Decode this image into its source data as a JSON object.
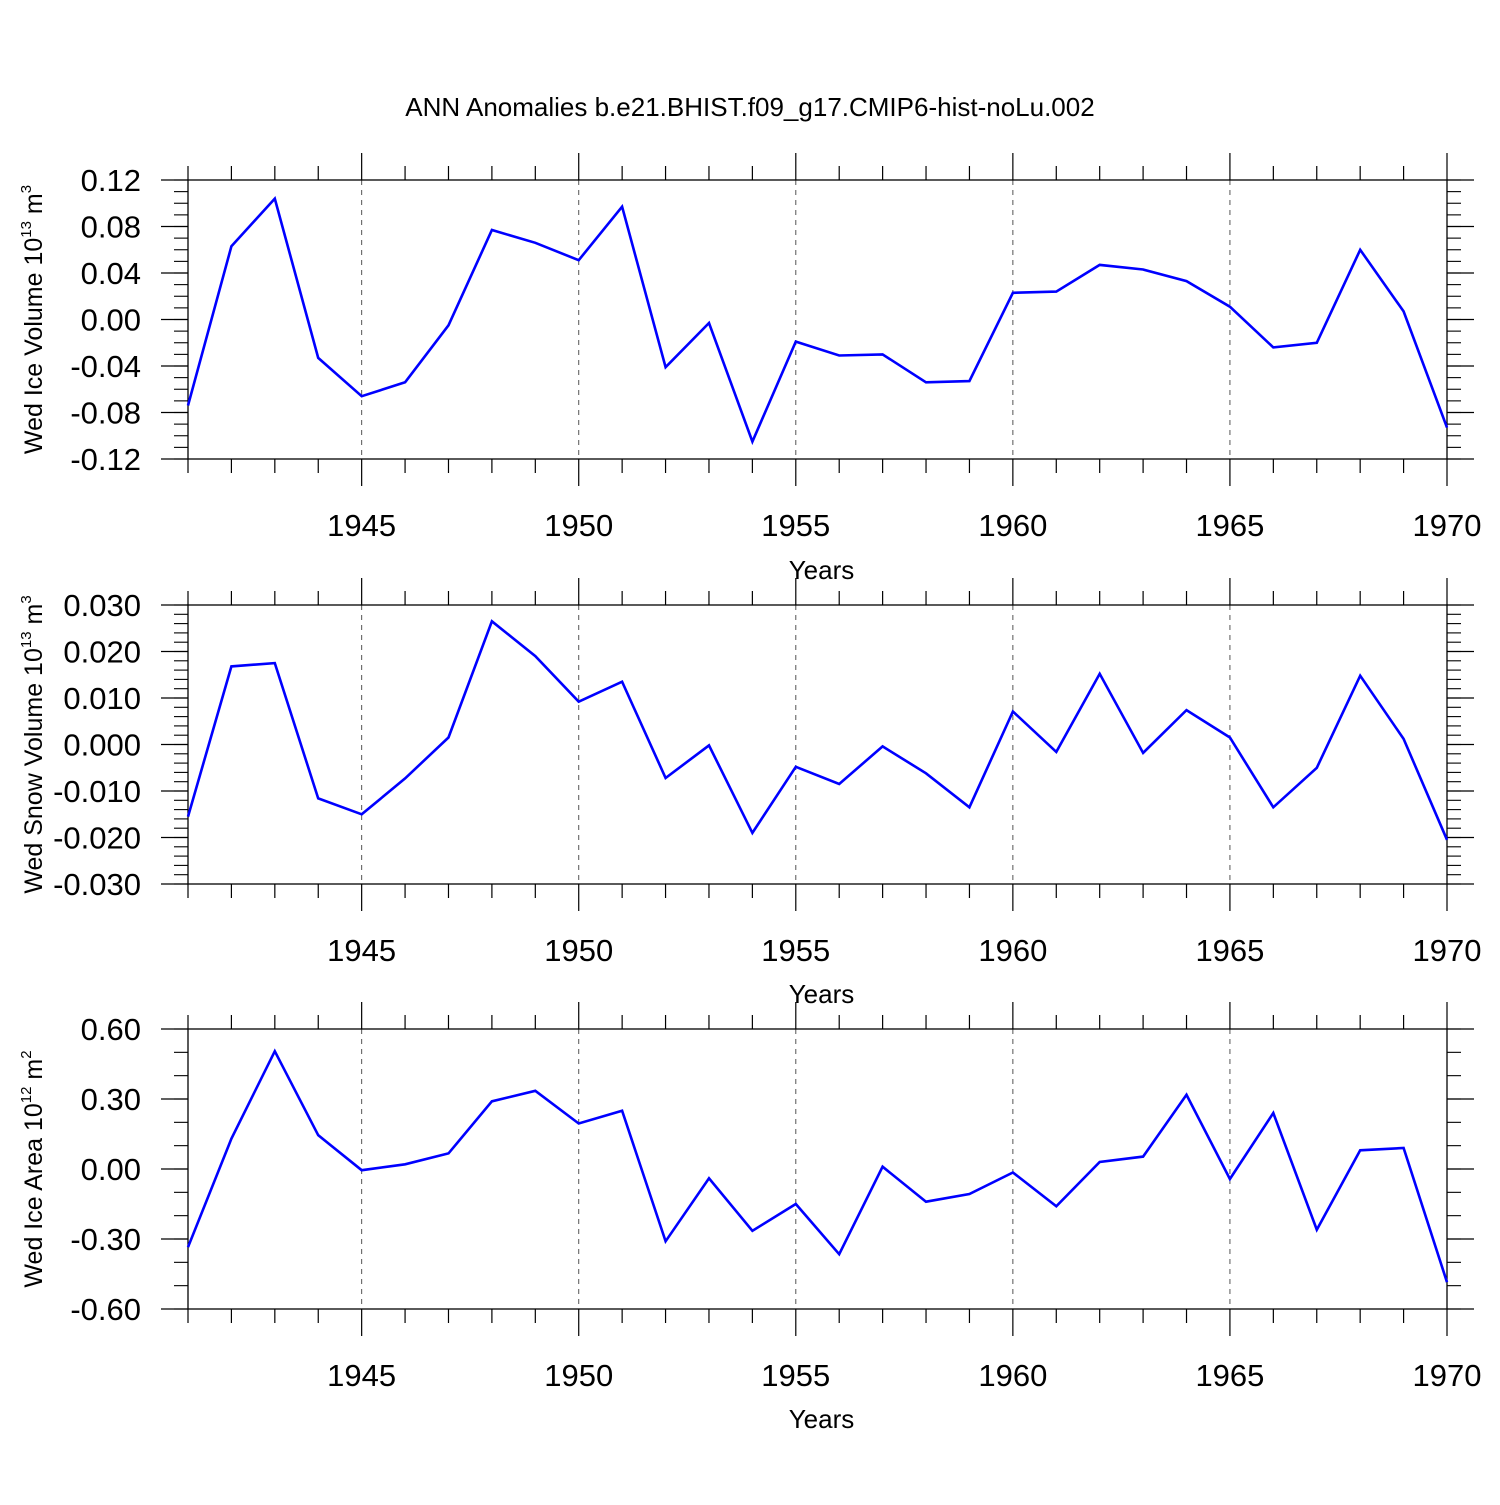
{
  "title": "ANN Anomalies b.e21.BHIST.f09_g17.CMIP6-hist-noLu.002",
  "style": {
    "line_color": "#0000ff",
    "axis_color": "#000000",
    "grid_color": "#555555"
  },
  "chart_data": [
    {
      "type": "line",
      "title": "ANN Anomalies b.e21.BHIST.f09_g17.CMIP6-hist-noLu.002",
      "xlabel": "Years",
      "ylabel": {
        "main": "Wed Ice Volume 10",
        "sup": "13",
        "unit": " m",
        "unit_sup": "3"
      },
      "xlim": [
        1941,
        1970
      ],
      "ylim": [
        -0.12,
        0.12
      ],
      "x_ticks": [
        1945,
        1950,
        1955,
        1960,
        1965,
        1970
      ],
      "y_ticks": [
        "0.12",
        "0.08",
        "0.04",
        "0.00",
        "-0.04",
        "-0.08",
        "-0.12"
      ],
      "y_tick_values": [
        0.12,
        0.08,
        0.04,
        0.0,
        -0.04,
        -0.08,
        -0.12
      ],
      "y_minor_step": 0.01,
      "grid": "vertical dashed at major x ticks",
      "x": [
        1941,
        1942,
        1943,
        1944,
        1945,
        1946,
        1947,
        1948,
        1949,
        1950,
        1951,
        1952,
        1953,
        1954,
        1955,
        1956,
        1957,
        1958,
        1959,
        1960,
        1961,
        1962,
        1963,
        1964,
        1965,
        1966,
        1967,
        1968,
        1969,
        1970
      ],
      "series": [
        {
          "values": [
            -0.074,
            0.063,
            0.104,
            -0.033,
            -0.066,
            -0.054,
            -0.005,
            0.077,
            0.066,
            0.051,
            0.097,
            -0.041,
            -0.003,
            -0.105,
            -0.019,
            -0.031,
            -0.03,
            -0.054,
            -0.053,
            0.023,
            0.024,
            0.047,
            0.043,
            0.033,
            0.011,
            -0.024,
            -0.02,
            0.06,
            0.007,
            -0.093
          ]
        }
      ]
    },
    {
      "type": "line",
      "xlabel": "Years",
      "ylabel": {
        "main": "Wed Snow Volume 10",
        "sup": "13",
        "unit": " m",
        "unit_sup": "3"
      },
      "xlim": [
        1941,
        1970
      ],
      "ylim": [
        -0.03,
        0.03
      ],
      "x_ticks": [
        1945,
        1950,
        1955,
        1960,
        1965,
        1970
      ],
      "y_ticks": [
        "0.030",
        "0.020",
        "0.010",
        "0.000",
        "-0.010",
        "-0.020",
        "-0.030"
      ],
      "y_tick_values": [
        0.03,
        0.02,
        0.01,
        0.0,
        -0.01,
        -0.02,
        -0.03
      ],
      "y_minor_step": 0.002,
      "grid": "vertical dashed at major x ticks",
      "x": [
        1941,
        1942,
        1943,
        1944,
        1945,
        1946,
        1947,
        1948,
        1949,
        1950,
        1951,
        1952,
        1953,
        1954,
        1955,
        1956,
        1957,
        1958,
        1959,
        1960,
        1961,
        1962,
        1963,
        1964,
        1965,
        1966,
        1967,
        1968,
        1969,
        1970
      ],
      "series": [
        {
          "values": [
            -0.0155,
            0.0168,
            0.0175,
            -0.0116,
            -0.015,
            -0.0073,
            0.0015,
            0.0265,
            0.019,
            0.0092,
            0.0135,
            -0.0072,
            -0.0002,
            -0.019,
            -0.0048,
            -0.0085,
            -0.0004,
            -0.0062,
            -0.0135,
            0.0071,
            -0.0016,
            0.0152,
            -0.0018,
            0.0074,
            0.0015,
            -0.0135,
            -0.005,
            0.0148,
            0.0012,
            -0.0205
          ]
        }
      ]
    },
    {
      "type": "line",
      "xlabel": "Years",
      "ylabel": {
        "main": "Wed Ice Area 10",
        "sup": "12",
        "unit": " m",
        "unit_sup": "2"
      },
      "xlim": [
        1941,
        1970
      ],
      "ylim": [
        -0.6,
        0.6
      ],
      "x_ticks": [
        1945,
        1950,
        1955,
        1960,
        1965,
        1970
      ],
      "y_ticks": [
        "0.60",
        "0.30",
        "0.00",
        "-0.30",
        "-0.60"
      ],
      "y_tick_values": [
        0.6,
        0.3,
        0.0,
        -0.3,
        -0.6
      ],
      "y_minor_step": 0.1,
      "grid": "vertical dashed at major x ticks",
      "x": [
        1941,
        1942,
        1943,
        1944,
        1945,
        1946,
        1947,
        1948,
        1949,
        1950,
        1951,
        1952,
        1953,
        1954,
        1955,
        1956,
        1957,
        1958,
        1959,
        1960,
        1961,
        1962,
        1963,
        1964,
        1965,
        1966,
        1967,
        1968,
        1969,
        1970
      ],
      "series": [
        {
          "values": [
            -0.335,
            0.13,
            0.505,
            0.145,
            -0.005,
            0.02,
            0.067,
            0.29,
            0.335,
            0.195,
            0.25,
            -0.31,
            -0.04,
            -0.265,
            -0.15,
            -0.365,
            0.01,
            -0.14,
            -0.107,
            -0.015,
            -0.16,
            0.03,
            0.053,
            0.318,
            -0.043,
            0.24,
            -0.26,
            0.08,
            0.09,
            -0.485
          ]
        }
      ]
    }
  ]
}
